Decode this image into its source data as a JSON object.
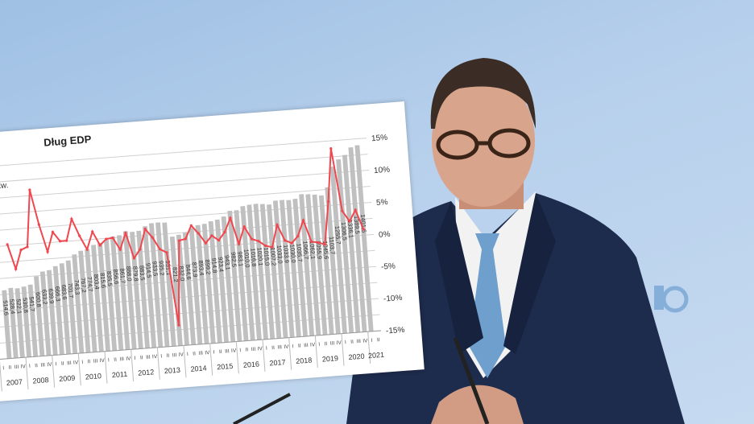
{
  "chart_data": {
    "type": "bar+line",
    "title": "Dług EDP",
    "left_axis_fragment": "/kw.",
    "right_axis_ticks": [
      "15%",
      "10%",
      "5%",
      "0%",
      "-5%",
      "-10%",
      "-15%"
    ],
    "right_axis_range": [
      -15,
      15
    ],
    "grid": true,
    "years": [
      "2007",
      "2008",
      "2009",
      "2010",
      "2011",
      "2012",
      "2013",
      "2014",
      "2015",
      "2016",
      "2017",
      "2018",
      "2019",
      "2020",
      "2021"
    ],
    "quarters": [
      "I",
      "II",
      "III",
      "IV"
    ],
    "bar_color": "#c0c0c0",
    "line_color": "#f0474f",
    "bars": [
      null,
      514.6,
      528.4,
      522.1,
      530.8,
      541.7,
      600.8,
      633.2,
      639.9,
      666.3,
      683.6,
      701.7,
      743.3,
      767.2,
      774.7,
      803.4,
      815.6,
      835.5,
      856.6,
      861.7,
      888.0,
      879.8,
      883.5,
      914.5,
      933.5,
      935.2,
      931.1,
      821.2,
      832.0,
      844.6,
      873.9,
      893.4,
      899.2,
      914.8,
      923.4,
      943.1,
      982.5,
      983.1,
      1010.0,
      1016.8,
      1020.1,
      1015.0,
      1007.2,
      1033.0,
      1033.9,
      1030.0,
      1035.7,
      1066.7,
      1062.1,
      1055.9,
      1045.6,
      1103.7,
      1255.7,
      1306.5,
      1336.1,
      1389.5,
      1401.6,
      null
    ],
    "line_pct": [
      null,
      null,
      2.7,
      -1.2,
      1.7,
      2.1,
      10.9,
      5.4,
      1.1,
      4.1,
      2.6,
      2.6,
      5.9,
      3.2,
      1.0,
      3.7,
      1.5,
      2.4,
      2.5,
      0.6,
      3.1,
      -0.9,
      0.4,
      3.5,
      2.1,
      0.2,
      -0.4,
      -11.8,
      1.3,
      1.5,
      3.5,
      2.2,
      0.6,
      1.7,
      0.9,
      2.1,
      4.2,
      0.1,
      2.7,
      0.7,
      0.3,
      -0.5,
      -0.8,
      2.6,
      0.1,
      -0.4,
      0.6,
      3.0,
      -0.4,
      -0.6,
      -1.0,
      5.6,
      13.8,
      4.0,
      2.3,
      4.0,
      0.9,
      null
    ]
  },
  "colors": {
    "background": "#b7d0ec",
    "suit": "#1d2b4c",
    "tie": "#6f9fcc"
  }
}
